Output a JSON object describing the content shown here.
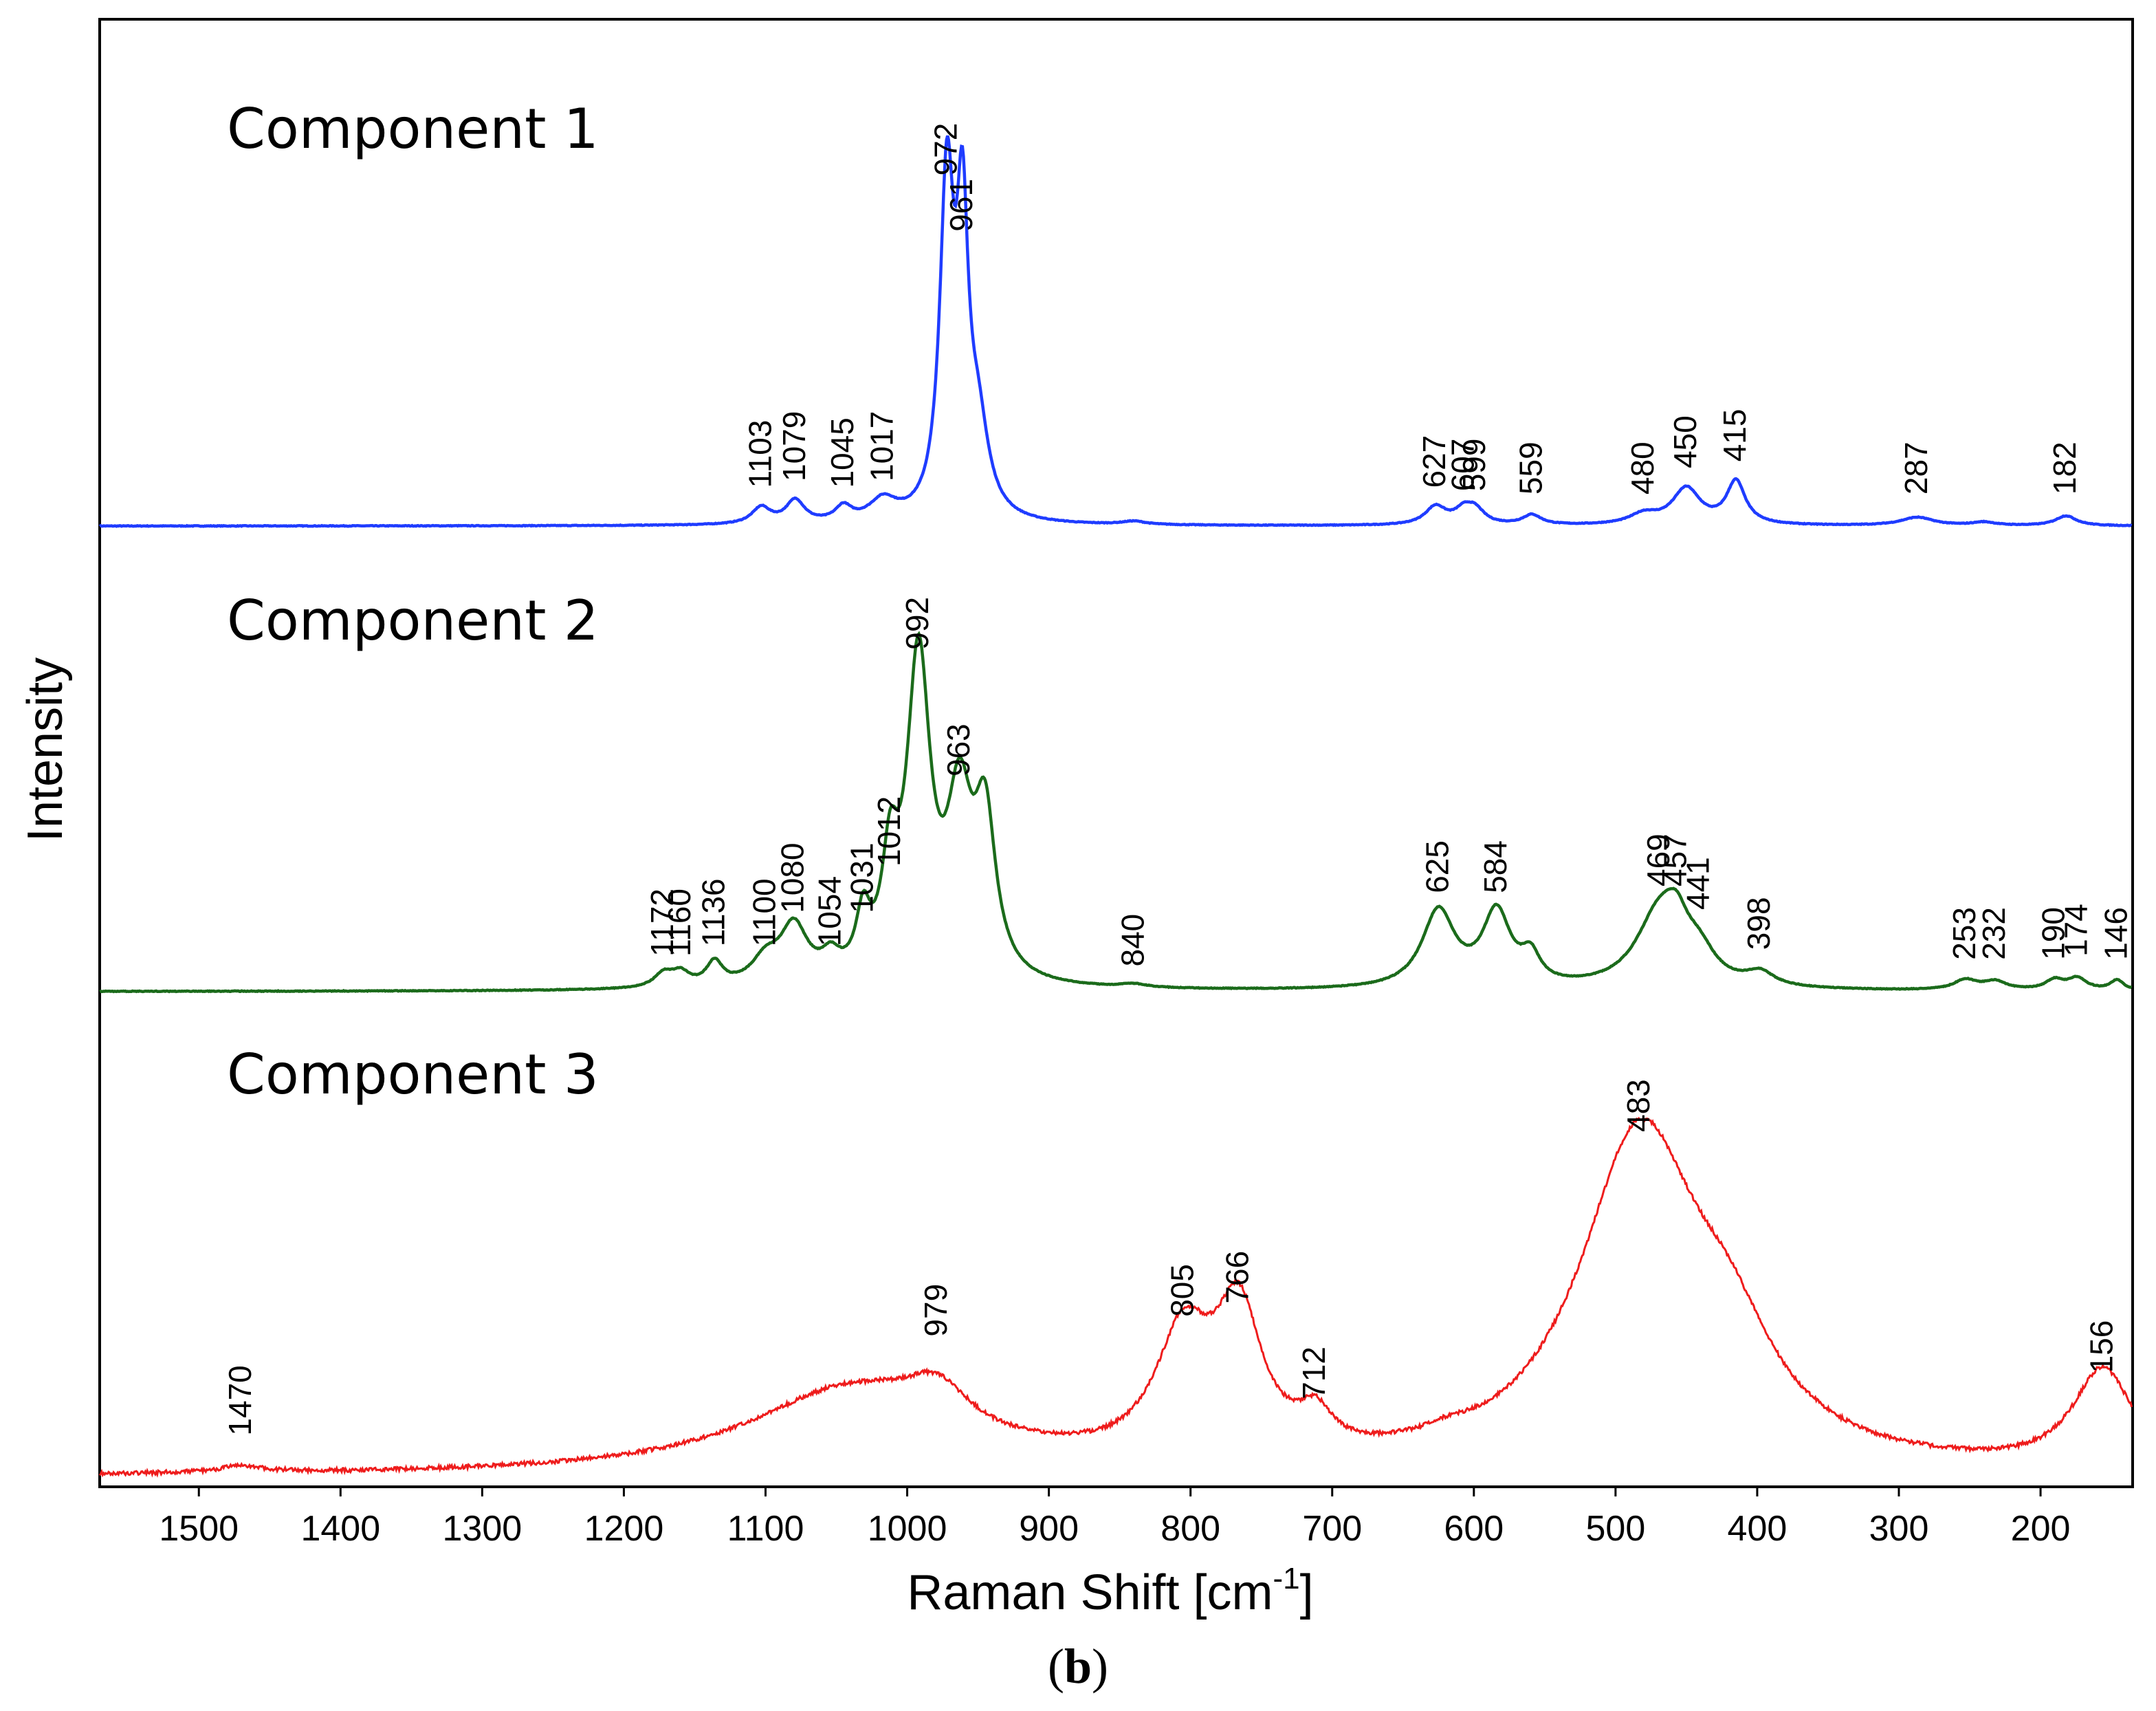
{
  "chart_data": {
    "type": "line",
    "xlabel": "Raman Shift [cm",
    "xlabel_sup": "-1",
    "xlabel_end": "]",
    "ylabel": "Intensity",
    "xlim": [
      1570,
      135
    ],
    "x_ticks": [
      1500,
      1400,
      1300,
      1200,
      1100,
      1000,
      900,
      800,
      700,
      600,
      500,
      400,
      300,
      200
    ],
    "panel_prefix": "(",
    "panel_letter": "b",
    "panel_suffix": ")",
    "series": [
      {
        "name": "Component 1",
        "color": "#1f3cff",
        "baseline": 0,
        "peaks": [
          {
            "x": 1103,
            "h": 0.05,
            "w": 8
          },
          {
            "x": 1079,
            "h": 0.07,
            "w": 8
          },
          {
            "x": 1045,
            "h": 0.045,
            "w": 7
          },
          {
            "x": 1017,
            "h": 0.065,
            "w": 12
          },
          {
            "x": 972,
            "h": 1.0,
            "w": 6
          },
          {
            "x": 961,
            "h": 0.82,
            "w": 5
          },
          {
            "x": 950,
            "h": 0.25,
            "w": 9
          },
          {
            "x": 840,
            "h": 0.01,
            "w": 10
          },
          {
            "x": 627,
            "h": 0.055,
            "w": 9
          },
          {
            "x": 607,
            "h": 0.04,
            "w": 8
          },
          {
            "x": 599,
            "h": 0.04,
            "w": 8
          },
          {
            "x": 559,
            "h": 0.03,
            "w": 8
          },
          {
            "x": 480,
            "h": 0.03,
            "w": 12
          },
          {
            "x": 450,
            "h": 0.11,
            "w": 12
          },
          {
            "x": 415,
            "h": 0.13,
            "w": 8
          },
          {
            "x": 287,
            "h": 0.025,
            "w": 14
          },
          {
            "x": 240,
            "h": 0.01,
            "w": 10
          },
          {
            "x": 182,
            "h": 0.03,
            "w": 9
          }
        ],
        "labels": [
          {
            "text": "1103",
            "x": 1103,
            "y": 0.07
          },
          {
            "text": "1079",
            "x": 1079,
            "y": 0.09
          },
          {
            "text": "1045",
            "x": 1045,
            "y": 0.07
          },
          {
            "text": "1017",
            "x": 1017,
            "y": 0.09
          },
          {
            "text": "972",
            "x": 972,
            "y": 1.02
          },
          {
            "text": "961",
            "x": 961,
            "y": 0.85
          },
          {
            "text": "627",
            "x": 627,
            "y": 0.07
          },
          {
            "text": "607",
            "x": 607,
            "y": 0.06
          },
          {
            "text": "599",
            "x": 599,
            "y": 0.06
          },
          {
            "text": "559",
            "x": 559,
            "y": 0.05
          },
          {
            "text": "480",
            "x": 480,
            "y": 0.05
          },
          {
            "text": "450",
            "x": 450,
            "y": 0.13
          },
          {
            "text": "415",
            "x": 415,
            "y": 0.15
          },
          {
            "text": "287",
            "x": 287,
            "y": 0.05
          },
          {
            "text": "182",
            "x": 182,
            "y": 0.05
          }
        ]
      },
      {
        "name": "Component 2",
        "color": "#1b6b1b",
        "baseline": 0,
        "peaks": [
          {
            "x": 1172,
            "h": 0.04,
            "w": 8
          },
          {
            "x": 1160,
            "h": 0.04,
            "w": 8
          },
          {
            "x": 1136,
            "h": 0.07,
            "w": 7
          },
          {
            "x": 1100,
            "h": 0.07,
            "w": 12
          },
          {
            "x": 1080,
            "h": 0.17,
            "w": 12
          },
          {
            "x": 1054,
            "h": 0.06,
            "w": 8
          },
          {
            "x": 1031,
            "h": 0.17,
            "w": 6
          },
          {
            "x": 1012,
            "h": 0.3,
            "w": 7
          },
          {
            "x": 992,
            "h": 0.95,
            "w": 10
          },
          {
            "x": 963,
            "h": 0.5,
            "w": 11
          },
          {
            "x": 945,
            "h": 0.45,
            "w": 9
          },
          {
            "x": 840,
            "h": 0.01,
            "w": 12
          },
          {
            "x": 625,
            "h": 0.23,
            "w": 14
          },
          {
            "x": 584,
            "h": 0.22,
            "w": 12
          },
          {
            "x": 560,
            "h": 0.08,
            "w": 8
          },
          {
            "x": 469,
            "h": 0.22,
            "w": 20
          },
          {
            "x": 457,
            "h": 0.1,
            "w": 10
          },
          {
            "x": 441,
            "h": 0.08,
            "w": 14
          },
          {
            "x": 398,
            "h": 0.04,
            "w": 12
          },
          {
            "x": 253,
            "h": 0.03,
            "w": 10
          },
          {
            "x": 232,
            "h": 0.025,
            "w": 10
          },
          {
            "x": 190,
            "h": 0.03,
            "w": 8
          },
          {
            "x": 174,
            "h": 0.035,
            "w": 8
          },
          {
            "x": 146,
            "h": 0.03,
            "w": 6
          }
        ],
        "labels": [
          {
            "text": "1172",
            "x": 1172,
            "y": 0.06
          },
          {
            "text": "1160",
            "x": 1160,
            "y": 0.06
          },
          {
            "text": "1136",
            "x": 1136,
            "y": 0.09
          },
          {
            "text": "1100",
            "x": 1100,
            "y": 0.09
          },
          {
            "text": "1080",
            "x": 1080,
            "y": 0.19
          },
          {
            "text": "1054",
            "x": 1054,
            "y": 0.09
          },
          {
            "text": "1031",
            "x": 1031,
            "y": 0.19
          },
          {
            "text": "1012",
            "x": 1012,
            "y": 0.33
          },
          {
            "text": "992",
            "x": 992,
            "y": 0.98
          },
          {
            "text": "963",
            "x": 963,
            "y": 0.6
          },
          {
            "text": "840",
            "x": 840,
            "y": 0.03
          },
          {
            "text": "625",
            "x": 625,
            "y": 0.25
          },
          {
            "text": "584",
            "x": 584,
            "y": 0.25
          },
          {
            "text": "469",
            "x": 469,
            "y": 0.27
          },
          {
            "text": "457",
            "x": 457,
            "y": 0.27
          },
          {
            "text": "441",
            "x": 441,
            "y": 0.2
          },
          {
            "text": "398",
            "x": 398,
            "y": 0.08
          },
          {
            "text": "253",
            "x": 253,
            "y": 0.05
          },
          {
            "text": "232",
            "x": 232,
            "y": 0.05
          },
          {
            "text": "190",
            "x": 190,
            "y": 0.05
          },
          {
            "text": "174",
            "x": 174,
            "y": 0.06
          },
          {
            "text": "146",
            "x": 146,
            "y": 0.05
          }
        ]
      },
      {
        "name": "Component 3",
        "color": "#ee1c1c",
        "baseline": 0,
        "peaks": [
          {
            "x": 1470,
            "h": 0.02,
            "w": 20
          },
          {
            "x": 1040,
            "h": 0.25,
            "w": 90
          },
          {
            "x": 979,
            "h": 0.12,
            "w": 28
          },
          {
            "x": 805,
            "h": 0.36,
            "w": 24
          },
          {
            "x": 766,
            "h": 0.42,
            "w": 20
          },
          {
            "x": 712,
            "h": 0.1,
            "w": 14
          },
          {
            "x": 620,
            "h": 0.02,
            "w": 20
          },
          {
            "x": 483,
            "h": 1.0,
            "w": 52
          },
          {
            "x": 420,
            "h": 0.25,
            "w": 40
          },
          {
            "x": 156,
            "h": 0.3,
            "w": 26
          }
        ],
        "labels": [
          {
            "text": "1470",
            "x": 1470,
            "y": 0.08
          },
          {
            "text": "979",
            "x": 979,
            "y": 0.38
          },
          {
            "text": "805",
            "x": 805,
            "y": 0.44
          },
          {
            "text": "766",
            "x": 766,
            "y": 0.48
          },
          {
            "text": "712",
            "x": 712,
            "y": 0.19
          },
          {
            "text": "483",
            "x": 483,
            "y": 1.0
          },
          {
            "text": "156",
            "x": 156,
            "y": 0.27
          }
        ]
      }
    ]
  }
}
